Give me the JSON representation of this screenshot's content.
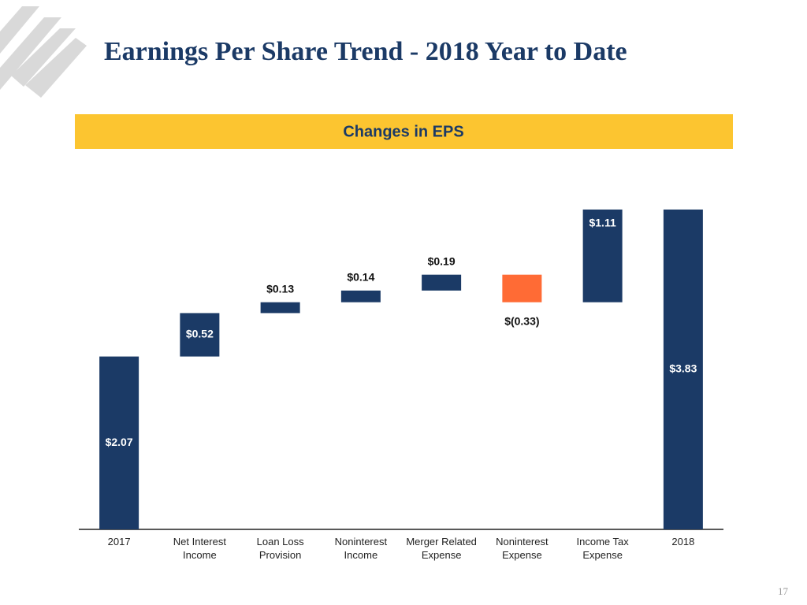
{
  "title": "Earnings Per Share Trend - 2018 Year to Date",
  "page_number": "17",
  "chart_data": {
    "type": "waterfall",
    "title": "Changes in EPS",
    "categories": [
      "2017",
      "Net Interest\nIncome",
      "Loan Loss\nProvision",
      "Noninterest\nIncome",
      "Merger Related\nExpense",
      "Noninterest\nExpense",
      "Income Tax\nExpense",
      "2018"
    ],
    "values": [
      2.07,
      0.52,
      0.13,
      0.14,
      0.19,
      -0.33,
      1.11,
      3.83
    ],
    "value_labels": [
      "$2.07",
      "$0.52",
      "$0.13",
      "$0.14",
      "$0.19",
      "$(0.33)",
      "$1.11",
      "$3.83"
    ],
    "color": "#1b3a66",
    "negative_color": "#ff6b35"
  }
}
